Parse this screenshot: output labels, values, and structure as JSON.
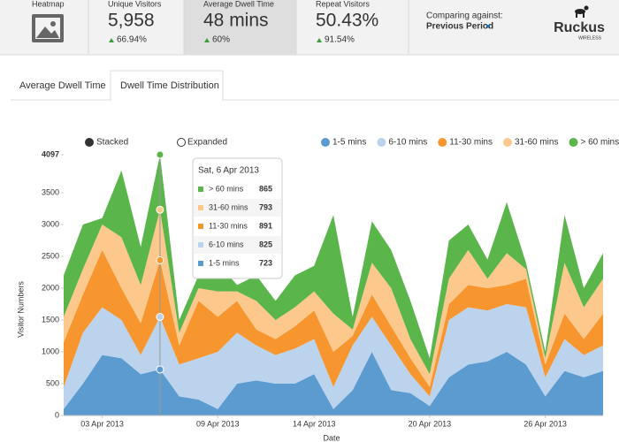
{
  "header": {
    "cards": [
      {
        "label": "Heatmap"
      },
      {
        "label": "Unique Visitors",
        "value": "5,958",
        "change": "66.94%"
      },
      {
        "label": "Average Dwell Time",
        "value": "48 mins",
        "change": "60%"
      },
      {
        "label": "Repeat Visitors",
        "value": "50.43%",
        "change": "91.54%"
      }
    ],
    "comparing": {
      "label": "Comparing against:",
      "value": "Previous Period"
    },
    "logo": {
      "name": "Ruckus",
      "tagline": "WIRELESS"
    }
  },
  "tabs": [
    "Average Dwell Time",
    "Dwell Time Distribution"
  ],
  "modes": [
    "Stacked",
    "Expanded"
  ],
  "chart_data": {
    "type": "stacked_area",
    "x_label": "Date",
    "y_label": "Visitor Numbers",
    "x": [
      "01 Apr 2013",
      "02 Apr 2013",
      "03 Apr 2013",
      "04 Apr 2013",
      "05 Apr 2013",
      "06 Apr 2013",
      "07 Apr 2013",
      "08 Apr 2013",
      "09 Apr 2013",
      "10 Apr 2013",
      "11 Apr 2013",
      "12 Apr 2013",
      "13 Apr 2013",
      "14 Apr 2013",
      "15 Apr 2013",
      "16 Apr 2013",
      "17 Apr 2013",
      "18 Apr 2013",
      "19 Apr 2013",
      "20 Apr 2013",
      "21 Apr 2013",
      "22 Apr 2013",
      "23 Apr 2013",
      "24 Apr 2013",
      "25 Apr 2013",
      "26 Apr 2013",
      "27 Apr 2013",
      "28 Apr 2013",
      "29 Apr 2013"
    ],
    "xticks": [
      "03 Apr 2013",
      "09 Apr 2013",
      "14 Apr 2013",
      "20 Apr 2013",
      "26 Apr 2013"
    ],
    "ylim": [
      0,
      4097
    ],
    "yticks": [
      0,
      500,
      1000,
      1500,
      2000,
      2500,
      3000,
      3500,
      4097
    ],
    "series": [
      {
        "name": "1-5 mins",
        "color": "#5b9bd0",
        "values": [
          100,
          500,
          950,
          900,
          650,
          723,
          300,
          250,
          100,
          500,
          550,
          500,
          500,
          650,
          100,
          400,
          1000,
          400,
          350,
          150,
          600,
          800,
          850,
          1000,
          800,
          300,
          700,
          600,
          700
        ]
      },
      {
        "name": "6-10 mins",
        "color": "#bcd3ee",
        "values": [
          350,
          800,
          750,
          600,
          300,
          825,
          500,
          650,
          900,
          800,
          550,
          450,
          550,
          550,
          350,
          700,
          550,
          700,
          300,
          150,
          900,
          900,
          800,
          750,
          900,
          300,
          500,
          350,
          400
        ]
      },
      {
        "name": "11-30 mins",
        "color": "#f7962e",
        "values": [
          700,
          600,
          900,
          500,
          500,
          891,
          300,
          900,
          550,
          500,
          250,
          250,
          350,
          450,
          550,
          150,
          350,
          300,
          250,
          150,
          250,
          350,
          350,
          300,
          450,
          200,
          400,
          250,
          500
        ]
      },
      {
        "name": "31-60 mins",
        "color": "#fcc88c",
        "values": [
          400,
          400,
          400,
          800,
          600,
          793,
          200,
          200,
          400,
          150,
          450,
          300,
          300,
          300,
          600,
          100,
          500,
          600,
          300,
          200,
          400,
          550,
          150,
          500,
          150,
          100,
          800,
          500,
          550
        ]
      },
      {
        "name": "> 60 mins",
        "color": "#5ab54b",
        "values": [
          650,
          700,
          100,
          1050,
          600,
          865,
          200,
          200,
          450,
          100,
          400,
          300,
          500,
          400,
          1550,
          200,
          650,
          600,
          600,
          250,
          600,
          400,
          300,
          800,
          100,
          100,
          750,
          300,
          400
        ]
      }
    ],
    "tooltip": {
      "title": "Sat, 6 Apr 2013",
      "index": 5
    }
  }
}
